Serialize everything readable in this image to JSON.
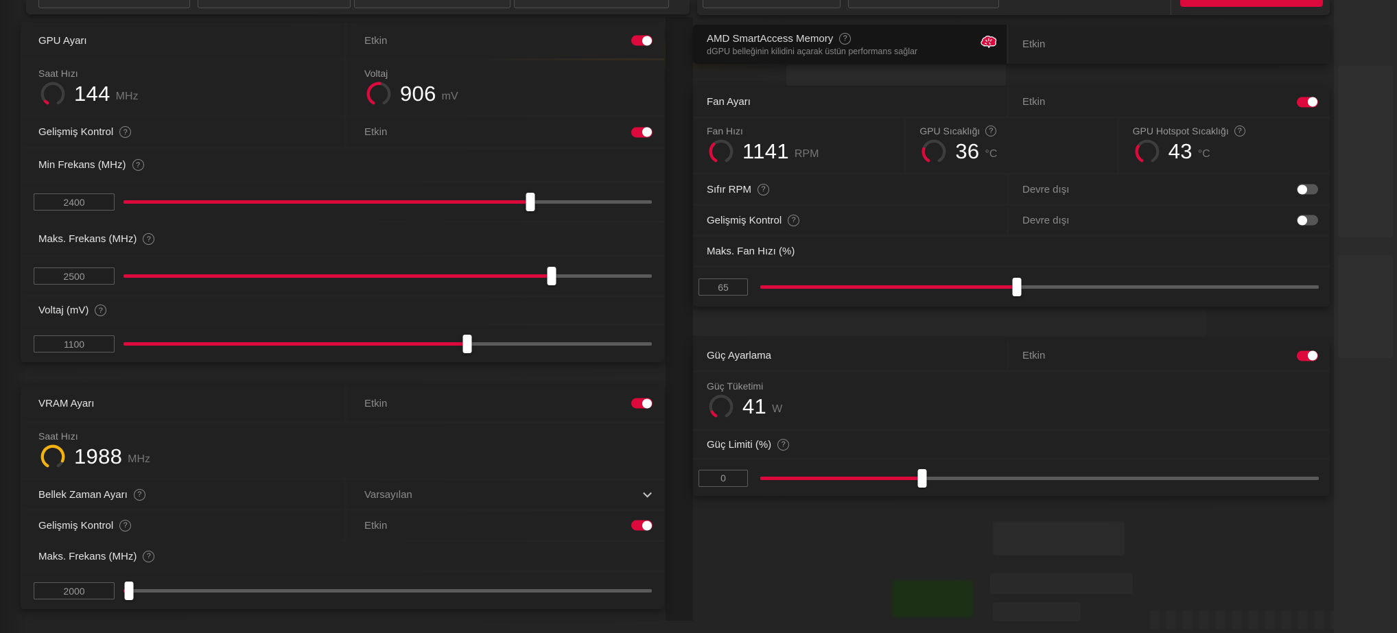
{
  "colors": {
    "red": "#dc0a3c",
    "amber": "#f2b211",
    "gauge_track": "#3d3d3d",
    "ghost_green": "#1b3413"
  },
  "gpu_card": {
    "title": "GPU Ayarı",
    "status": "Etkin",
    "enabled": true,
    "clock": {
      "label": "Saat Hızı",
      "value": "144",
      "unit": "MHz",
      "pct": 5,
      "color": "#dc0a3c"
    },
    "voltage_gauge": {
      "label": "Voltaj",
      "value": "906",
      "unit": "mV",
      "pct": 52,
      "color": "#dc0a3c"
    },
    "advanced": {
      "label": "Gelişmiş Kontrol",
      "status": "Etkin",
      "enabled": true
    },
    "min_freq": {
      "label": "Min Frekans (MHz)",
      "value": "2400",
      "pct": 77
    },
    "max_freq": {
      "label": "Maks. Frekans (MHz)",
      "value": "2500",
      "pct": 81
    },
    "voltage": {
      "label": "Voltaj (mV)",
      "value": "1100",
      "pct": 65
    }
  },
  "vram_card": {
    "title": "VRAM Ayarı",
    "status": "Etkin",
    "enabled": true,
    "clock": {
      "label": "Saat Hızı",
      "value": "1988",
      "unit": "MHz",
      "pct": 88,
      "color": "#f2b211"
    },
    "timing": {
      "label": "Bellek Zaman Ayarı",
      "value": "Varsayılan"
    },
    "advanced": {
      "label": "Gelişmiş Kontrol",
      "status": "Etkin",
      "enabled": true
    },
    "max_freq": {
      "label": "Maks. Frekans (MHz)",
      "value": "2000",
      "pct": 1
    }
  },
  "sam_card": {
    "title": "AMD SmartAccess Memory",
    "subtitle": "dGPU belleğinin kilidini açarak üstün performans sağlar",
    "status": "Etkin"
  },
  "fan_card": {
    "title": "Fan Ayarı",
    "status": "Etkin",
    "enabled": true,
    "fan_speed": {
      "label": "Fan Hızı",
      "value": "1141",
      "unit": "RPM",
      "pct": 35,
      "color": "#dc0a3c"
    },
    "gpu_temp": {
      "label": "GPU Sıcaklığı",
      "value": "36",
      "unit": "°C",
      "pct": 25,
      "color": "#dc0a3c"
    },
    "hotspot_temp": {
      "label": "GPU Hotspot Sıcaklığı",
      "value": "43",
      "unit": "°C",
      "pct": 30,
      "color": "#dc0a3c"
    },
    "zero_rpm": {
      "label": "Sıfır RPM",
      "status": "Devre dışı",
      "enabled": false
    },
    "advanced": {
      "label": "Gelişmiş Kontrol",
      "status": "Devre dışı",
      "enabled": false
    },
    "max_fan": {
      "label": "Maks. Fan Hızı (%)",
      "value": "65",
      "pct": 46
    }
  },
  "power_card": {
    "title": "Güç Ayarlama",
    "status": "Etkin",
    "enabled": true,
    "consumption": {
      "label": "Güç Tüketimi",
      "value": "41",
      "unit": "W",
      "pct": 10,
      "color": "#dc0a3c"
    },
    "limit": {
      "label": "Güç Limiti (%)",
      "value": "0",
      "pct": 29
    }
  }
}
